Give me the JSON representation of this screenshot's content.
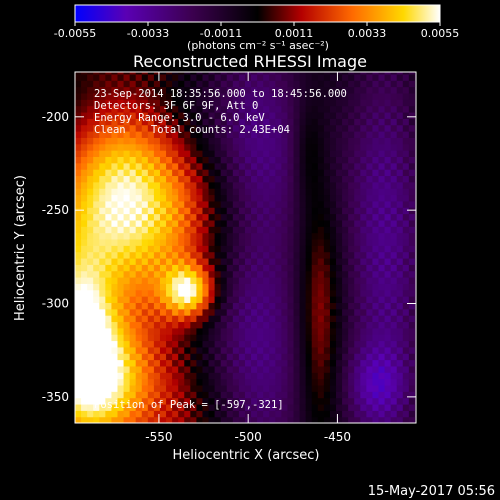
{
  "chart_data": {
    "type": "heatmap",
    "title": "Reconstructed RHESSI Image",
    "xlabel": "Heliocentric X (arcsec)",
    "ylabel": "Heliocentric Y (arcsec)",
    "xlim": [
      -597,
      -406
    ],
    "ylim": [
      -364,
      -176
    ],
    "x_ticks": [
      {
        "value": -550,
        "label": "-550"
      },
      {
        "value": -500,
        "label": "-500"
      },
      {
        "value": -450,
        "label": "-450"
      }
    ],
    "y_ticks": [
      {
        "value": -200,
        "label": "-200"
      },
      {
        "value": -250,
        "label": "-250"
      },
      {
        "value": -300,
        "label": "-300"
      },
      {
        "value": -350,
        "label": "-350"
      }
    ],
    "colorbar": {
      "range": [
        -0.0055,
        0.0055
      ],
      "tick_labels": [
        "-0.0055",
        "-0.0033",
        "-0.0011",
        "0.0011",
        "0.0033",
        "0.0055"
      ],
      "unit_label": "(photons cm⁻² s⁻¹ asec⁻²)",
      "colors": [
        "#0000ff",
        "#5a00b4",
        "#3c0050",
        "#000000",
        "#b40000",
        "#ff6a00",
        "#ffd800",
        "#ffffff"
      ]
    },
    "annotations": [
      "23-Sep-2014 18:35:56.000 to 18:45:56.000",
      "Detectors: 3F 6F 9F, Att 0",
      "Energy Range: 3.0 - 6.0 keV",
      "Clean    Total counts: 2.43E+04"
    ],
    "peak_label": "Position of Peak = [-597,-321]",
    "peak": {
      "x": -597,
      "y": -321
    }
  },
  "footer": {
    "timestamp": "15-May-2017 05:56"
  }
}
